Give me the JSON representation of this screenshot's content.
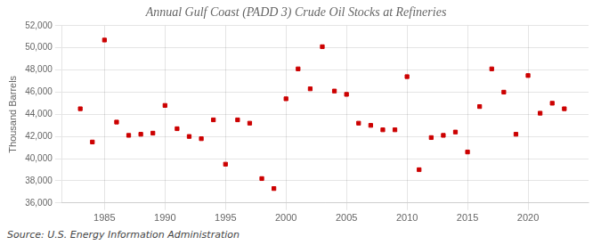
{
  "chart_data": {
    "type": "scatter",
    "title": "Annual Gulf Coast (PADD 3) Crude Oil Stocks at Refineries",
    "ylabel": "Thousand Barrels",
    "annotation": "Source: U.S. Energy Information Administration",
    "x": [
      1983,
      1984,
      1985,
      1986,
      1987,
      1988,
      1989,
      1990,
      1991,
      1992,
      1993,
      1994,
      1995,
      1996,
      1997,
      1998,
      1999,
      2000,
      2001,
      2002,
      2003,
      2004,
      2005,
      2006,
      2007,
      2008,
      2009,
      2010,
      2011,
      2012,
      2013,
      2014,
      2015,
      2016,
      2017,
      2018,
      2019,
      2020,
      2021,
      2022,
      2023
    ],
    "values": [
      44500,
      41500,
      50700,
      43300,
      42100,
      42200,
      42300,
      44800,
      42700,
      42000,
      41800,
      43500,
      39500,
      43500,
      43200,
      38200,
      37300,
      45400,
      48100,
      46300,
      50100,
      46100,
      45800,
      43200,
      43000,
      42600,
      42600,
      47400,
      39000,
      41900,
      42100,
      42400,
      40600,
      44700,
      48100,
      46000,
      42200,
      47500,
      44100,
      45000,
      44500
    ],
    "color": "#cc0000",
    "marker": "square",
    "xlim": [
      1981.5,
      2025
    ],
    "xticks": [
      1985,
      1990,
      1995,
      2000,
      2005,
      2010,
      2015,
      2020
    ],
    "ylim": [
      36000,
      52000
    ],
    "yticks": [
      {
        "value": 36000,
        "label": "36,000"
      },
      {
        "value": 38000,
        "label": "38,000"
      },
      {
        "value": 40000,
        "label": "40,000"
      },
      {
        "value": 42000,
        "label": "42,000"
      },
      {
        "value": 44000,
        "label": "44,000"
      },
      {
        "value": 46000,
        "label": "46,000"
      },
      {
        "value": 48000,
        "label": "48,000"
      },
      {
        "value": 50000,
        "label": "50,000"
      },
      {
        "value": 52000,
        "label": "52,000"
      }
    ],
    "grid": true
  }
}
